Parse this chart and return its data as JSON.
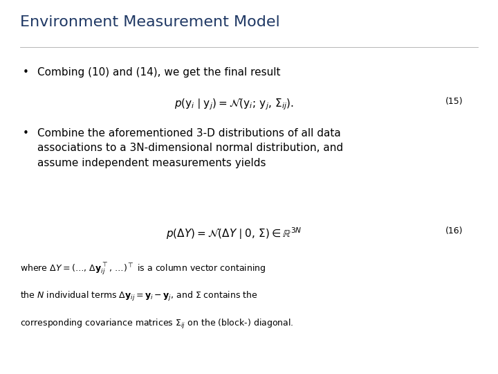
{
  "title": "Environment Measurement Model",
  "title_color": "#1F3864",
  "title_fontsize": 16,
  "background_color": "#ffffff",
  "bullet1_text": "Combing (10) and (14), we get the final result",
  "eq15_label": "(15)",
  "bullet2_line1": "Combine the aforementioned 3-D distributions of all data",
  "bullet2_line2": "associations to a 3N-dimensional normal distribution, and",
  "bullet2_line3": "assume independent measurements yields",
  "eq16_label": "(16)",
  "text_color": "#000000",
  "text_fontsize": 11,
  "eq_fontsize": 11,
  "label_fontsize": 9,
  "where_fontsize": 9
}
